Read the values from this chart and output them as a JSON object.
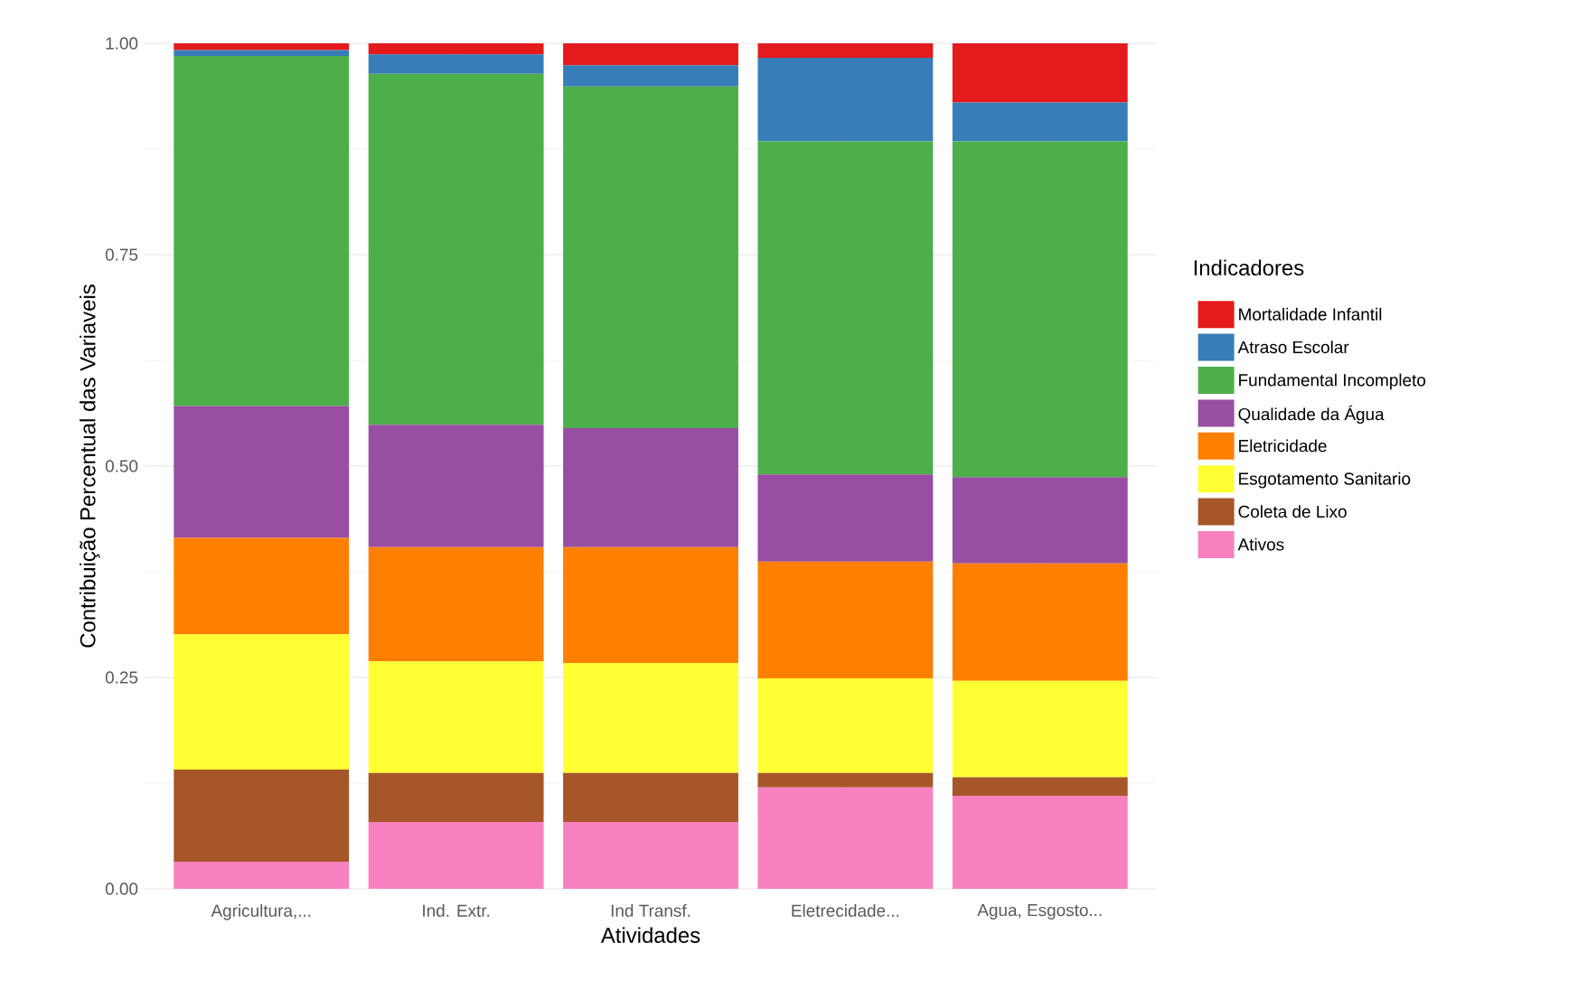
{
  "chart_data": {
    "type": "bar",
    "stacked": true,
    "xlabel": "Atividades",
    "ylabel": "Contribuição Percentual das Variaveis",
    "legend_title": "Indicadores",
    "legend": "right",
    "grid": true,
    "categories": [
      "Agricultura,...",
      "Ind. Extr.",
      "Ind Transf.",
      "Eletrecidade...",
      "Agua, Esgosto..."
    ],
    "ylim": [
      0,
      1
    ],
    "yticks": [
      {
        "value": 0,
        "label": "0.00"
      },
      {
        "value": 0.25,
        "label": "0.25"
      },
      {
        "value": 0.5,
        "label": "0.50"
      },
      {
        "value": 0.75,
        "label": "0.75"
      },
      {
        "value": 1,
        "label": "1.00"
      }
    ],
    "series": [
      {
        "name": "Ativos",
        "color": "#f781bf",
        "values": [
          0.032,
          0.079,
          0.079,
          0.12,
          0.11
        ]
      },
      {
        "name": "Coleta de Lixo",
        "color": "#a65628",
        "values": [
          0.109,
          0.058,
          0.058,
          0.017,
          0.022
        ]
      },
      {
        "name": "Esgotamento Sanitario",
        "color": "#ffff33",
        "values": [
          0.16,
          0.132,
          0.13,
          0.112,
          0.114
        ]
      },
      {
        "name": "Eletricidade",
        "color": "#ff7f00",
        "values": [
          0.114,
          0.135,
          0.137,
          0.138,
          0.139
        ]
      },
      {
        "name": "Qualidade da Água",
        "color": "#984ea3",
        "values": [
          0.156,
          0.145,
          0.141,
          0.103,
          0.102
        ]
      },
      {
        "name": "Fundamental Incompleto",
        "color": "#4daf4a",
        "values": [
          0.414,
          0.415,
          0.404,
          0.394,
          0.397
        ]
      },
      {
        "name": "Atraso Escolar",
        "color": "#377eb8",
        "values": [
          0.007,
          0.023,
          0.025,
          0.099,
          0.046
        ]
      },
      {
        "name": "Mortalidade Infantil",
        "color": "#e41a1c",
        "values": [
          0.008,
          0.013,
          0.026,
          0.017,
          0.07
        ]
      }
    ]
  }
}
